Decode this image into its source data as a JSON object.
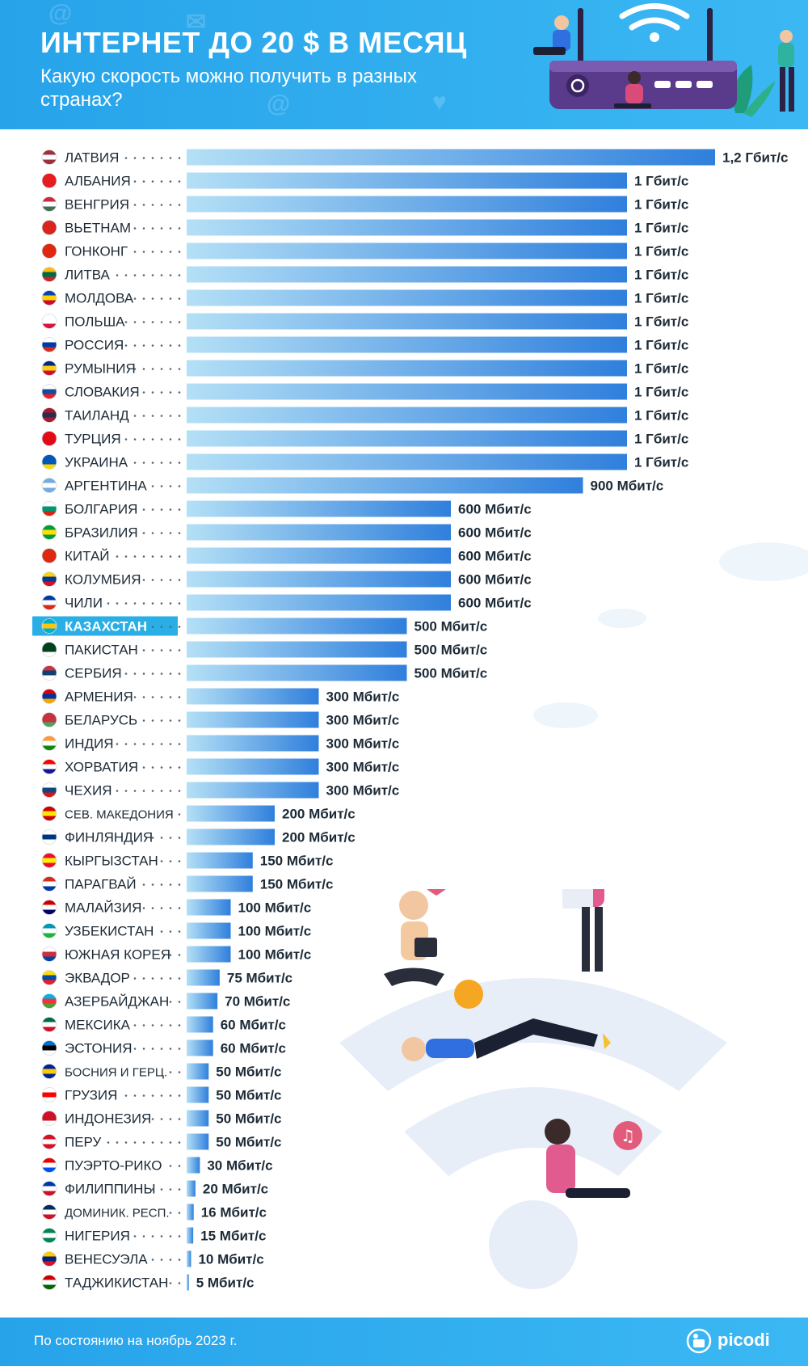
{
  "header": {
    "title": "ИНТЕРНЕТ ДО 20 $ В МЕСЯЦ",
    "subtitle": "Какую скорость можно получить в разных странах?"
  },
  "footer": {
    "note": "По состоянию на ноябрь 2023 г.",
    "brand": "picodi"
  },
  "colors": {
    "header_bg": "#2aa8ee",
    "bar_start": "#a9dbf4",
    "bar_end": "#2f7fdc",
    "highlight": "#29aee6",
    "label": "#1c2a36"
  },
  "chart_data": {
    "type": "bar",
    "orientation": "horizontal",
    "unit": "Мбит/с",
    "highlighted": "КАЗАХСТАН",
    "categories": [
      "ЛАТВИЯ",
      "АЛБАНИЯ",
      "ВЕНГРИЯ",
      "ВЬЕТНАМ",
      "ГОНКОНГ",
      "ЛИТВА",
      "МОЛДОВА",
      "ПОЛЬША",
      "РОССИЯ",
      "РУМЫНИЯ",
      "СЛОВАКИЯ",
      "ТАИЛАНД",
      "ТУРЦИЯ",
      "УКРАИНА",
      "АРГЕНТИНА",
      "БОЛГАРИЯ",
      "БРАЗИЛИЯ",
      "КИТАЙ",
      "КОЛУМБИЯ",
      "ЧИЛИ",
      "КАЗАХСТАН",
      "ПАКИСТАН",
      "СЕРБИЯ",
      "АРМЕНИЯ",
      "БЕЛАРУСЬ",
      "ИНДИЯ",
      "ХОРВАТИЯ",
      "ЧЕХИЯ",
      "СЕВ. МАКЕДОНИЯ",
      "ФИНЛЯНДИЯ",
      "КЫРГЫЗСТАН",
      "ПАРАГВАЙ",
      "МАЛАЙЗИЯ",
      "УЗБЕКИСТАН",
      "ЮЖНАЯ КОРЕЯ",
      "ЭКВАДОР",
      "АЗЕРБАЙДЖАН",
      "МЕКСИКА",
      "ЭСТОНИЯ",
      "БОСНИЯ И ГЕРЦ.",
      "ГРУЗИЯ",
      "ИНДОНЕЗИЯ",
      "ПЕРУ",
      "ПУЭРТО-РИКО",
      "ФИЛИППИНЫ",
      "ДОМИНИК. РЕСП.",
      "НИГЕРИЯ",
      "ВЕНЕСУЭЛА",
      "ТАДЖИКИСТАН"
    ],
    "values": [
      1200,
      1000,
      1000,
      1000,
      1000,
      1000,
      1000,
      1000,
      1000,
      1000,
      1000,
      1000,
      1000,
      1000,
      900,
      600,
      600,
      600,
      600,
      600,
      500,
      500,
      500,
      300,
      300,
      300,
      300,
      300,
      200,
      200,
      150,
      150,
      100,
      100,
      100,
      75,
      70,
      60,
      60,
      50,
      50,
      50,
      50,
      30,
      20,
      16,
      15,
      10,
      5
    ],
    "value_labels": [
      "1,2 Гбит/с",
      "1 Гбит/с",
      "1 Гбит/с",
      "1 Гбит/с",
      "1 Гбит/с",
      "1 Гбит/с",
      "1 Гбит/с",
      "1 Гбит/с",
      "1 Гбит/с",
      "1 Гбит/с",
      "1 Гбит/с",
      "1 Гбит/с",
      "1 Гбит/с",
      "1 Гбит/с",
      "900 Мбит/с",
      "600 Мбит/с",
      "600 Мбит/с",
      "600 Мбит/с",
      "600 Мбит/с",
      "600 Мбит/с",
      "500 Мбит/с",
      "500 Мбит/с",
      "500 Мбит/с",
      "300 Мбит/с",
      "300 Мбит/с",
      "300 Мбит/с",
      "300 Мбит/с",
      "300 Мбит/с",
      "200 Мбит/с",
      "200 Мбит/с",
      "150 Мбит/с",
      "150 Мбит/с",
      "100 Мбит/с",
      "100 Мбит/с",
      "100 Мбит/с",
      "75 Мбит/с",
      "70 Мбит/с",
      "60 Мбит/с",
      "60 Мбит/с",
      "50 Мбит/с",
      "50 Мбит/с",
      "50 Мбит/с",
      "50 Мбит/с",
      "30 Мбит/с",
      "20 Мбит/с",
      "16 Мбит/с",
      "15 Мбит/с",
      "10 Мбит/с",
      "5 Мбит/с"
    ],
    "flags": [
      [
        "#9e3039",
        "#ffffff",
        "#9e3039"
      ],
      [
        "#e41e20",
        "#e41e20",
        "#e41e20"
      ],
      [
        "#cd2a3e",
        "#ffffff",
        "#436f4d"
      ],
      [
        "#da251d",
        "#da251d",
        "#da251d"
      ],
      [
        "#de2910",
        "#de2910",
        "#de2910"
      ],
      [
        "#fdb913",
        "#006a44",
        "#c1272d"
      ],
      [
        "#0046ae",
        "#ffd200",
        "#cc092f"
      ],
      [
        "#ffffff",
        "#ffffff",
        "#dc143c"
      ],
      [
        "#ffffff",
        "#0039a6",
        "#d52b1e"
      ],
      [
        "#002b7f",
        "#fcd116",
        "#ce1126"
      ],
      [
        "#ffffff",
        "#0b4ea2",
        "#ee1c25"
      ],
      [
        "#a51931",
        "#2d2a4a",
        "#a51931"
      ],
      [
        "#e30a17",
        "#e30a17",
        "#e30a17"
      ],
      [
        "#0057b7",
        "#0057b7",
        "#ffd700"
      ],
      [
        "#74acdf",
        "#ffffff",
        "#74acdf"
      ],
      [
        "#ffffff",
        "#00966e",
        "#d62612"
      ],
      [
        "#009c3b",
        "#ffdf00",
        "#009c3b"
      ],
      [
        "#de2910",
        "#de2910",
        "#de2910"
      ],
      [
        "#fcd116",
        "#003893",
        "#ce1126"
      ],
      [
        "#0039a6",
        "#ffffff",
        "#d52b1e"
      ],
      [
        "#00afca",
        "#fec50c",
        "#00afca"
      ],
      [
        "#01411c",
        "#01411c",
        "#ffffff"
      ],
      [
        "#c6363c",
        "#0c4076",
        "#ffffff"
      ],
      [
        "#d90012",
        "#0033a0",
        "#f2a800"
      ],
      [
        "#c8313e",
        "#c8313e",
        "#4aa657"
      ],
      [
        "#ff9933",
        "#ffffff",
        "#138808"
      ],
      [
        "#ff0000",
        "#ffffff",
        "#171796"
      ],
      [
        "#ffffff",
        "#11457e",
        "#d7141a"
      ],
      [
        "#d20000",
        "#ffe600",
        "#d20000"
      ],
      [
        "#ffffff",
        "#003580",
        "#ffffff"
      ],
      [
        "#e8112d",
        "#ffef00",
        "#e8112d"
      ],
      [
        "#d52b1e",
        "#ffffff",
        "#0038a8"
      ],
      [
        "#cc0001",
        "#ffffff",
        "#010066"
      ],
      [
        "#0099b5",
        "#ffffff",
        "#1eb53a"
      ],
      [
        "#ffffff",
        "#cd2e3a",
        "#0047a0"
      ],
      [
        "#ffdd00",
        "#034ea2",
        "#ed1c24"
      ],
      [
        "#00b5e2",
        "#ef3340",
        "#509e2f"
      ],
      [
        "#006847",
        "#ffffff",
        "#ce1126"
      ],
      [
        "#0072ce",
        "#000000",
        "#ffffff"
      ],
      [
        "#002395",
        "#fecb00",
        "#002395"
      ],
      [
        "#ffffff",
        "#ff0000",
        "#ffffff"
      ],
      [
        "#ce1126",
        "#ce1126",
        "#ffffff"
      ],
      [
        "#d91023",
        "#ffffff",
        "#d91023"
      ],
      [
        "#ed0000",
        "#ffffff",
        "#0050f0"
      ],
      [
        "#0038a8",
        "#ffffff",
        "#ce1126"
      ],
      [
        "#002d62",
        "#ffffff",
        "#ce1126"
      ],
      [
        "#008751",
        "#ffffff",
        "#008751"
      ],
      [
        "#ffcc00",
        "#00247d",
        "#cf142b"
      ],
      [
        "#cc0000",
        "#ffffff",
        "#006600"
      ]
    ],
    "xlim": [
      0,
      1200
    ],
    "grid": false,
    "legend": "none"
  }
}
